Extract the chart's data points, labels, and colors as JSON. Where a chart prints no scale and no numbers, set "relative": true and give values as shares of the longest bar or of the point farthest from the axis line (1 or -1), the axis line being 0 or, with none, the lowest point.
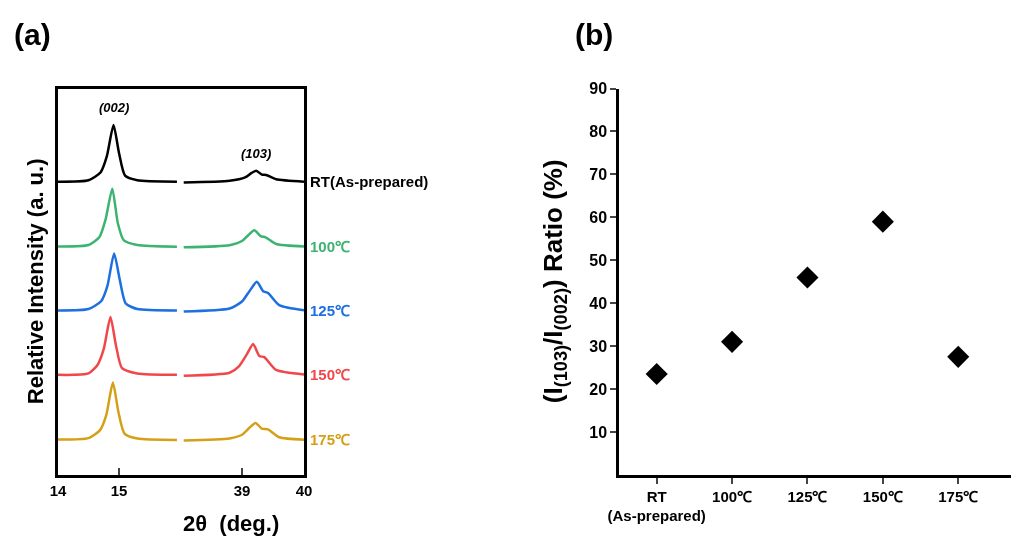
{
  "chart_data": [
    {
      "type": "line",
      "title": "(a)",
      "ylabel": "Relative Intensity (a. u.)",
      "xlabel": "2θ  (deg.)",
      "relative": true,
      "xlim": [
        14,
        16
      ],
      "xticks": [
        14,
        15
      ],
      "tick_labels": "x",
      "legend": false,
      "marker": "none",
      "line_style": "solid",
      "annotations": [
        "(002)"
      ],
      "series": [
        {
          "color": "#000000",
          "x": [
            14.0,
            14.5,
            14.7,
            14.8,
            14.91,
            15.0,
            15.1,
            15.3,
            15.95
          ],
          "values": [
            0.838,
            0.842,
            0.865,
            0.91,
            1.0,
            0.92,
            0.855,
            0.842,
            0.838
          ]
        },
        {
          "color": "#3cb371",
          "x": [
            14.0,
            14.5,
            14.68,
            14.78,
            14.89,
            14.98,
            15.08,
            15.3,
            15.95
          ],
          "values": [
            0.653,
            0.657,
            0.68,
            0.73,
            0.818,
            0.72,
            0.67,
            0.657,
            0.652
          ]
        },
        {
          "color": "#1e6fe0",
          "x": [
            14.0,
            14.5,
            14.71,
            14.81,
            14.92,
            15.01,
            15.11,
            15.3,
            15.95
          ],
          "values": [
            0.47,
            0.474,
            0.497,
            0.54,
            0.633,
            0.56,
            0.49,
            0.474,
            0.47
          ]
        },
        {
          "color": "#f0484a",
          "x": [
            14.0,
            14.5,
            14.65,
            14.75,
            14.86,
            14.95,
            15.05,
            15.3,
            15.95
          ],
          "values": [
            0.286,
            0.29,
            0.315,
            0.36,
            0.451,
            0.37,
            0.305,
            0.29,
            0.286
          ]
        },
        {
          "color": "#d4a017",
          "x": [
            14.0,
            14.5,
            14.69,
            14.79,
            14.9,
            14.99,
            15.09,
            15.3,
            15.95
          ],
          "values": [
            0.101,
            0.105,
            0.128,
            0.17,
            0.264,
            0.18,
            0.118,
            0.104,
            0.1
          ]
        }
      ]
    },
    {
      "type": "line",
      "relative": true,
      "xlim": [
        38,
        40
      ],
      "xticks": [
        39,
        40
      ],
      "tick_labels": "x",
      "legend": false,
      "marker": "none",
      "line_style": "solid",
      "annotations": [
        "(103)"
      ],
      "series": [
        {
          "name": "RT(As-prepared)",
          "color": "#000000",
          "x": [
            38.06,
            38.8,
            39.05,
            39.15,
            39.23,
            39.32,
            39.39,
            39.55,
            40.0
          ],
          "values": [
            0.961,
            0.967,
            0.978,
            0.992,
            1.0,
            0.987,
            0.986,
            0.972,
            0.964
          ]
        },
        {
          "name": "100℃",
          "color": "#3cb371",
          "x": [
            38.06,
            38.8,
            39.0,
            39.1,
            39.2,
            39.3,
            39.38,
            39.55,
            40.0
          ],
          "values": [
            0.748,
            0.755,
            0.769,
            0.788,
            0.804,
            0.785,
            0.781,
            0.759,
            0.751
          ]
        },
        {
          "name": "125℃",
          "color": "#1e6fe0",
          "x": [
            38.06,
            38.8,
            39.0,
            39.12,
            39.24,
            39.34,
            39.42,
            39.6,
            40.0
          ],
          "values": [
            0.537,
            0.547,
            0.57,
            0.604,
            0.635,
            0.604,
            0.598,
            0.558,
            0.541
          ]
        },
        {
          "name": "150℃",
          "color": "#f0484a",
          "x": [
            38.06,
            38.8,
            38.95,
            39.08,
            39.18,
            39.28,
            39.36,
            39.55,
            40.0
          ],
          "values": [
            0.326,
            0.336,
            0.357,
            0.397,
            0.43,
            0.391,
            0.387,
            0.345,
            0.33
          ]
        },
        {
          "name": "175℃",
          "color": "#d4a017",
          "x": [
            38.06,
            38.8,
            39.0,
            39.12,
            39.22,
            39.32,
            39.42,
            39.6,
            40.0
          ],
          "values": [
            0.113,
            0.12,
            0.132,
            0.155,
            0.171,
            0.152,
            0.15,
            0.124,
            0.116
          ]
        }
      ]
    },
    {
      "type": "scatter",
      "title": "(b)",
      "ylabel": "(I$_{(103)}$/I$_{(002)}$) Ratio (%)",
      "categories": [
        "RT\n(As-prepared)",
        "100℃",
        "125℃",
        "150℃",
        "175℃"
      ],
      "ylim": [
        0,
        90
      ],
      "yticks": [
        10,
        20,
        30,
        40,
        50,
        60,
        70,
        80,
        90
      ],
      "legend": false,
      "marker": "diamond",
      "series": [
        {
          "color": "#000000",
          "values": [
            23.5,
            31,
            46,
            59,
            27.5
          ]
        }
      ]
    }
  ]
}
